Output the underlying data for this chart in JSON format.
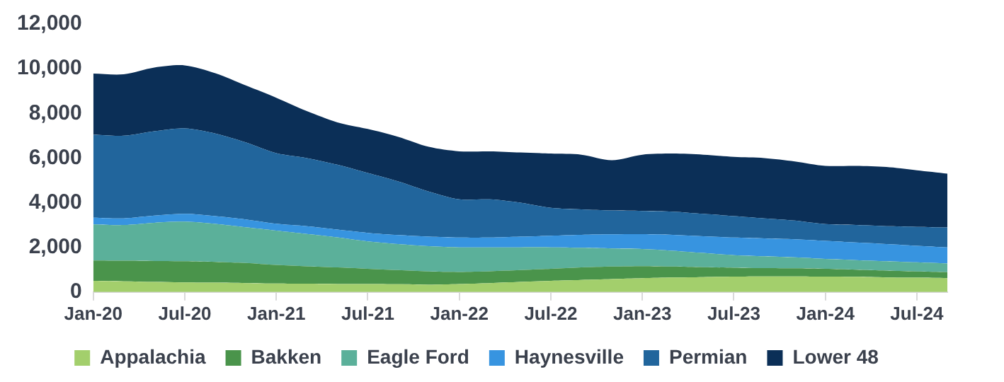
{
  "chart_data": {
    "type": "area",
    "stacked": true,
    "categories": [
      "Jan-20",
      null,
      null,
      "Jul-20",
      null,
      null,
      "Jan-21",
      null,
      null,
      "Jul-21",
      null,
      null,
      "Jan-22",
      null,
      null,
      "Jul-22",
      null,
      null,
      "Jan-23",
      null,
      null,
      "Jul-23",
      null,
      null,
      "Jan-24",
      null,
      null,
      "Jul-24",
      null
    ],
    "series": [
      {
        "name": "Appalachia",
        "color": "#a3cf6c",
        "values": [
          500,
          480,
          450,
          430,
          420,
          400,
          380,
          370,
          360,
          360,
          350,
          330,
          360,
          400,
          450,
          500,
          540,
          580,
          620,
          650,
          670,
          690,
          700,
          700,
          690,
          680,
          650,
          640,
          620
        ]
      },
      {
        "name": "Bakken",
        "color": "#4a944b",
        "values": [
          910,
          920,
          940,
          950,
          930,
          900,
          830,
          780,
          740,
          680,
          630,
          590,
          540,
          530,
          530,
          540,
          560,
          560,
          540,
          490,
          440,
          400,
          370,
          360,
          350,
          320,
          310,
          280,
          270
        ]
      },
      {
        "name": "Eagle Ford",
        "color": "#5bb09a",
        "values": [
          1620,
          1600,
          1710,
          1770,
          1700,
          1600,
          1540,
          1450,
          1350,
          1230,
          1170,
          1130,
          1100,
          1070,
          1020,
          960,
          880,
          810,
          770,
          710,
          640,
          560,
          530,
          490,
          440,
          430,
          420,
          410,
          390
        ]
      },
      {
        "name": "Haynesville",
        "color": "#3794e0",
        "values": [
          300,
          300,
          320,
          350,
          350,
          350,
          310,
          350,
          350,
          380,
          400,
          430,
          440,
          440,
          480,
          520,
          580,
          630,
          660,
          710,
          750,
          790,
          800,
          810,
          810,
          790,
          770,
          740,
          720
        ]
      },
      {
        "name": "Permian",
        "color": "#21659c",
        "values": [
          3710,
          3700,
          3780,
          3830,
          3700,
          3450,
          3160,
          3050,
          2900,
          2680,
          2400,
          2020,
          1710,
          1710,
          1520,
          1250,
          1140,
          1070,
          1040,
          1040,
          1000,
          960,
          900,
          840,
          750,
          780,
          800,
          850,
          890
        ]
      },
      {
        "name": "Lower 48",
        "color": "#0b2f57",
        "values": [
          2740,
          2750,
          2850,
          2820,
          2700,
          2550,
          2480,
          2100,
          1900,
          1970,
          2000,
          2000,
          2150,
          2150,
          2250,
          2430,
          2450,
          2250,
          2520,
          2600,
          2650,
          2650,
          2700,
          2650,
          2610,
          2650,
          2650,
          2530,
          2410
        ]
      }
    ],
    "ylim": [
      0,
      12000
    ],
    "yticks": [
      0,
      {
        "value": 2000,
        "label": "2,000"
      },
      {
        "value": 4000,
        "label": "4,000"
      },
      {
        "value": 6000,
        "label": "6,000"
      },
      {
        "value": 8000,
        "label": "8,000"
      },
      {
        "value": 10000,
        "label": "10,000"
      },
      {
        "value": 12000,
        "label": "12,000"
      }
    ],
    "grid": false,
    "legend": "bottom"
  }
}
